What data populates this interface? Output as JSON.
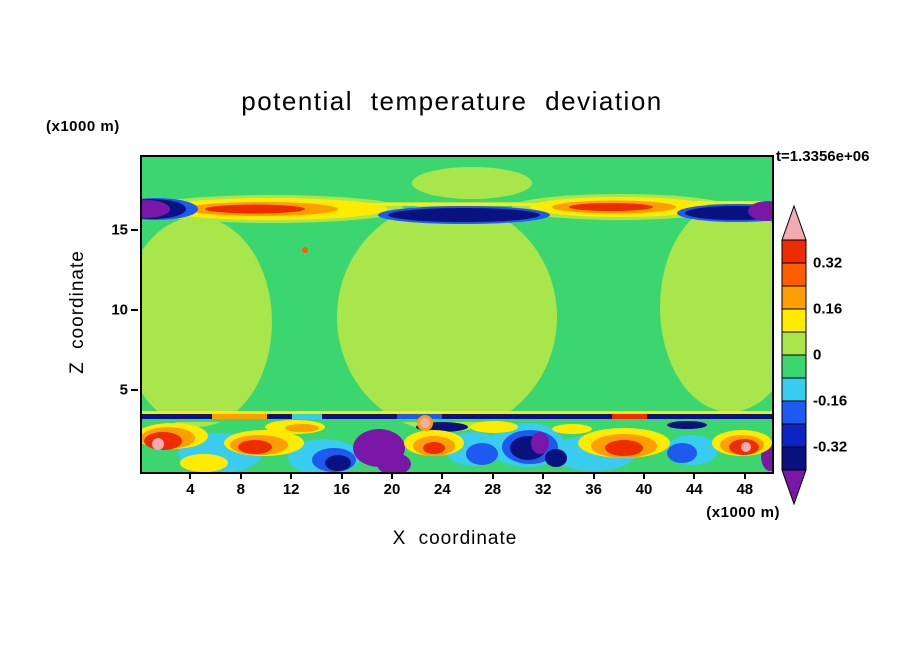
{
  "chart_data": {
    "type": "heatmap",
    "subtype": "filled contour x-z cross section",
    "title": "potential temperature deviation",
    "xlabel": "X coordinate",
    "ylabel": "Z coordinate",
    "x_units": "(x1000 m)",
    "y_units": "(x1000 m)",
    "time_annotation": "t=1.3356e+06",
    "xlim": [
      0,
      50
    ],
    "ylim": [
      0,
      19.7
    ],
    "x_ticks": [
      4,
      8,
      12,
      16,
      20,
      24,
      28,
      32,
      36,
      40,
      44,
      48
    ],
    "y_ticks": [
      5,
      10,
      15
    ],
    "grid": false,
    "legend_position": "right-colorbar",
    "colorbar": {
      "tick_labels": [
        "0.32",
        "0.16",
        "0",
        "-0.16",
        "-0.32"
      ],
      "tick_positions": [
        0.1,
        0.3,
        0.5,
        0.7,
        0.9
      ],
      "levels": [
        -0.4,
        -0.32,
        -0.24,
        -0.16,
        -0.08,
        0,
        0.08,
        0.16,
        0.24,
        0.32,
        0.4
      ],
      "band_colors": [
        "#EE2C00",
        "#FF5E00",
        "#FF9E00",
        "#FFEB00",
        "#A8E64C",
        "#3CD670",
        "#38CCEE",
        "#1E5AEF",
        "#0B24C4",
        "#0A1280"
      ],
      "over_color": "#F2ABB4",
      "under_color": "#7A16A8"
    },
    "field": {
      "background": "#3CD670",
      "shapes": [
        [
          "e",
          55,
          165,
          75,
          105,
          "#A8E64C"
        ],
        [
          "e",
          305,
          160,
          110,
          115,
          "#A8E64C"
        ],
        [
          "e",
          588,
          150,
          70,
          105,
          "#A8E64C"
        ],
        [
          "e",
          330,
          26,
          60,
          16,
          "#A8E64C"
        ],
        [
          "r",
          0,
          45,
          630,
          4,
          "#A8E64C"
        ],
        [
          "e",
          130,
          52,
          132,
          14,
          "#A8E64C"
        ],
        [
          "e",
          478,
          50,
          108,
          13,
          "#A8E64C"
        ],
        [
          "r",
          225,
          46,
          190,
          3,
          "#FFEB00"
        ],
        [
          "r",
          555,
          44,
          75,
          3,
          "#FFEB00"
        ],
        [
          "e",
          130,
          52,
          115,
          11,
          "#FFEB00"
        ],
        [
          "e",
          120,
          52,
          76,
          7,
          "#FF9E00"
        ],
        [
          "e",
          113,
          52,
          50,
          4.5,
          "#EE2C00"
        ],
        [
          "e",
          478,
          50,
          90,
          10,
          "#FFEB00"
        ],
        [
          "e",
          472,
          50,
          62,
          6.5,
          "#FF9E00"
        ],
        [
          "e",
          469,
          50,
          42,
          4,
          "#EE2C00"
        ],
        [
          "e",
          322,
          58,
          86,
          9,
          "#1E5AEF"
        ],
        [
          "e",
          322,
          58,
          76,
          7,
          "#0A1280"
        ],
        [
          "e",
          595,
          56,
          60,
          9,
          "#1E5AEF"
        ],
        [
          "e",
          595,
          56,
          52,
          7,
          "#0A1280"
        ],
        [
          "e",
          14,
          52,
          42,
          11,
          "#1E5AEF"
        ],
        [
          "e",
          10,
          52,
          34,
          10,
          "#0A1280"
        ],
        [
          "e",
          4,
          52,
          24,
          9,
          "#7A16A8"
        ],
        [
          "e",
          626,
          54,
          20,
          10,
          "#7A16A8"
        ],
        [
          "c",
          163,
          93,
          3,
          "#FF5E00"
        ],
        [
          "r",
          0,
          254,
          630,
          3,
          "#FFEB00"
        ],
        [
          "r",
          0,
          257,
          630,
          5,
          "#0A1280"
        ],
        [
          "r",
          70,
          257,
          55,
          5,
          "#FF9E00"
        ],
        [
          "r",
          255,
          257,
          45,
          5,
          "#1E5AEF"
        ],
        [
          "r",
          470,
          257,
          35,
          5,
          "#EE2C00"
        ],
        [
          "r",
          150,
          257,
          30,
          5,
          "#38CCEE"
        ],
        [
          "r",
          0,
          262,
          630,
          3,
          "#3CD670"
        ],
        [
          "e",
          78,
          296,
          42,
          20,
          "#38CCEE"
        ],
        [
          "e",
          182,
          300,
          36,
          18,
          "#38CCEE"
        ],
        [
          "e",
          332,
          292,
          30,
          17,
          "#38CCEE"
        ],
        [
          "e",
          452,
          296,
          42,
          18,
          "#38CCEE"
        ],
        [
          "e",
          550,
          293,
          26,
          15,
          "#38CCEE"
        ],
        [
          "e",
          385,
          288,
          38,
          22,
          "#38CCEE"
        ],
        [
          "e",
          192,
          303,
          22,
          12,
          "#1E5AEF"
        ],
        [
          "e",
          388,
          290,
          28,
          17,
          "#1E5AEF"
        ],
        [
          "e",
          340,
          297,
          16,
          11,
          "#1E5AEF"
        ],
        [
          "e",
          540,
          296,
          15,
          10,
          "#1E5AEF"
        ],
        [
          "e",
          196,
          306,
          13,
          8,
          "#0A1280"
        ],
        [
          "e",
          386,
          291,
          18,
          12,
          "#0A1280"
        ],
        [
          "e",
          414,
          301,
          11,
          9,
          "#0A1280"
        ],
        [
          "e",
          300,
          270,
          26,
          5,
          "#0A1280"
        ],
        [
          "e",
          545,
          268,
          20,
          4,
          "#0A1280"
        ],
        [
          "e",
          237,
          291,
          26,
          19,
          "#7A16A8"
        ],
        [
          "e",
          252,
          307,
          17,
          11,
          "#7A16A8"
        ],
        [
          "e",
          628,
          299,
          9,
          15,
          "#7A16A8"
        ],
        [
          "e",
          398,
          286,
          9,
          11,
          "#7A16A8"
        ],
        [
          "e",
          30,
          279,
          36,
          13,
          "#FFEB00"
        ],
        [
          "e",
          122,
          286,
          40,
          13,
          "#FFEB00"
        ],
        [
          "e",
          153,
          270,
          30,
          7,
          "#FFEB00"
        ],
        [
          "e",
          292,
          286,
          30,
          13,
          "#FFEB00"
        ],
        [
          "e",
          482,
          286,
          46,
          15,
          "#FFEB00"
        ],
        [
          "e",
          600,
          286,
          30,
          13,
          "#FFEB00"
        ],
        [
          "e",
          352,
          270,
          24,
          6,
          "#FFEB00"
        ],
        [
          "e",
          62,
          306,
          24,
          9,
          "#FFEB00"
        ],
        [
          "e",
          430,
          272,
          20,
          5,
          "#FFEB00"
        ],
        [
          "e",
          26,
          281,
          27,
          11,
          "#FF9E00"
        ],
        [
          "e",
          117,
          288,
          29,
          10,
          "#FF9E00"
        ],
        [
          "e",
          292,
          289,
          21,
          10,
          "#FF9E00"
        ],
        [
          "e",
          482,
          289,
          33,
          12,
          "#FF9E00"
        ],
        [
          "e",
          600,
          288,
          22,
          10,
          "#FF9E00"
        ],
        [
          "e",
          160,
          271,
          17,
          4,
          "#FF9E00"
        ],
        [
          "e",
          21,
          284,
          19,
          9,
          "#EE2C00"
        ],
        [
          "e",
          113,
          290,
          17,
          7,
          "#EE2C00"
        ],
        [
          "e",
          482,
          291,
          19,
          8,
          "#EE2C00"
        ],
        [
          "e",
          602,
          290,
          15,
          8,
          "#EE2C00"
        ],
        [
          "e",
          292,
          291,
          11,
          6,
          "#EE2C00"
        ],
        [
          "c",
          283,
          266,
          8,
          "#FF9E00"
        ],
        [
          "c",
          16,
          287,
          6,
          "#F2ABB4"
        ],
        [
          "c",
          283,
          266,
          5,
          "#F2ABB4"
        ],
        [
          "c",
          604,
          290,
          5,
          "#F2ABB4"
        ]
      ]
    }
  }
}
